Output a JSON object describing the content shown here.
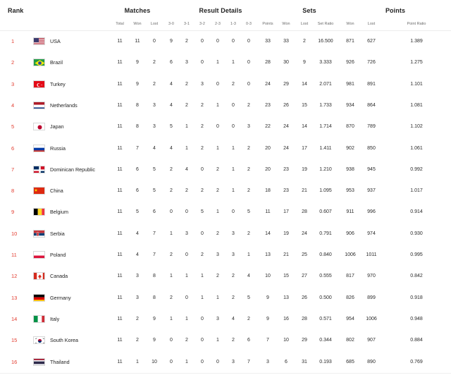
{
  "headers": {
    "rank": "Rank",
    "matches": "Matches",
    "result_details": "Result Details",
    "sets": "Sets",
    "points": "Points"
  },
  "subheaders": {
    "total": "Total",
    "won": "Won",
    "lost": "Lost",
    "r30": "3-0",
    "r31": "3-1",
    "r32": "3-2",
    "r23": "2-3",
    "r13": "1-3",
    "r03": "0-3",
    "points": "Points",
    "sets_won": "Won",
    "sets_lost": "Lost",
    "set_ratio": "Set Ratio",
    "pts_won": "Won",
    "pts_lost": "Lost",
    "point_ratio": "Point Ratio"
  },
  "rows": [
    {
      "rank": "1",
      "team": "USA",
      "flag": "usa-flag",
      "total": "11",
      "won": "11",
      "lost": "0",
      "r30": "9",
      "r31": "2",
      "r32": "0",
      "r23": "0",
      "r13": "0",
      "r03": "0",
      "points": "33",
      "sets_won": "33",
      "sets_lost": "2",
      "set_ratio": "16.500",
      "pts_won": "871",
      "pts_lost": "627",
      "point_ratio": "1.389"
    },
    {
      "rank": "2",
      "team": "Brazil",
      "flag": "brazil-flag",
      "total": "11",
      "won": "9",
      "lost": "2",
      "r30": "6",
      "r31": "3",
      "r32": "0",
      "r23": "1",
      "r13": "1",
      "r03": "0",
      "points": "28",
      "sets_won": "30",
      "sets_lost": "9",
      "set_ratio": "3.333",
      "pts_won": "926",
      "pts_lost": "726",
      "point_ratio": "1.275"
    },
    {
      "rank": "3",
      "team": "Turkey",
      "flag": "turkey-flag",
      "total": "11",
      "won": "9",
      "lost": "2",
      "r30": "4",
      "r31": "2",
      "r32": "3",
      "r23": "0",
      "r13": "2",
      "r03": "0",
      "points": "24",
      "sets_won": "29",
      "sets_lost": "14",
      "set_ratio": "2.071",
      "pts_won": "981",
      "pts_lost": "891",
      "point_ratio": "1.101"
    },
    {
      "rank": "4",
      "team": "Netherlands",
      "flag": "netherlands-flag",
      "total": "11",
      "won": "8",
      "lost": "3",
      "r30": "4",
      "r31": "2",
      "r32": "2",
      "r23": "1",
      "r13": "0",
      "r03": "2",
      "points": "23",
      "sets_won": "26",
      "sets_lost": "15",
      "set_ratio": "1.733",
      "pts_won": "934",
      "pts_lost": "864",
      "point_ratio": "1.081"
    },
    {
      "rank": "5",
      "team": "Japan",
      "flag": "japan-flag",
      "total": "11",
      "won": "8",
      "lost": "3",
      "r30": "5",
      "r31": "1",
      "r32": "2",
      "r23": "0",
      "r13": "0",
      "r03": "3",
      "points": "22",
      "sets_won": "24",
      "sets_lost": "14",
      "set_ratio": "1.714",
      "pts_won": "870",
      "pts_lost": "789",
      "point_ratio": "1.102"
    },
    {
      "rank": "6",
      "team": "Russia",
      "flag": "russia-flag",
      "total": "11",
      "won": "7",
      "lost": "4",
      "r30": "4",
      "r31": "1",
      "r32": "2",
      "r23": "1",
      "r13": "1",
      "r03": "2",
      "points": "20",
      "sets_won": "24",
      "sets_lost": "17",
      "set_ratio": "1.411",
      "pts_won": "902",
      "pts_lost": "850",
      "point_ratio": "1.061"
    },
    {
      "rank": "7",
      "team": "Dominican Republic",
      "flag": "dominican-republic-flag",
      "total": "11",
      "won": "6",
      "lost": "5",
      "r30": "2",
      "r31": "4",
      "r32": "0",
      "r23": "2",
      "r13": "1",
      "r03": "2",
      "points": "20",
      "sets_won": "23",
      "sets_lost": "19",
      "set_ratio": "1.210",
      "pts_won": "938",
      "pts_lost": "945",
      "point_ratio": "0.992"
    },
    {
      "rank": "8",
      "team": "China",
      "flag": "china-flag",
      "total": "11",
      "won": "6",
      "lost": "5",
      "r30": "2",
      "r31": "2",
      "r32": "2",
      "r23": "2",
      "r13": "1",
      "r03": "2",
      "points": "18",
      "sets_won": "23",
      "sets_lost": "21",
      "set_ratio": "1.095",
      "pts_won": "953",
      "pts_lost": "937",
      "point_ratio": "1.017"
    },
    {
      "rank": "9",
      "team": "Belgium",
      "flag": "belgium-flag",
      "total": "11",
      "won": "5",
      "lost": "6",
      "r30": "0",
      "r31": "0",
      "r32": "5",
      "r23": "1",
      "r13": "0",
      "r03": "5",
      "points": "11",
      "sets_won": "17",
      "sets_lost": "28",
      "set_ratio": "0.607",
      "pts_won": "911",
      "pts_lost": "996",
      "point_ratio": "0.914"
    },
    {
      "rank": "10",
      "team": "Serbia",
      "flag": "serbia-flag",
      "total": "11",
      "won": "4",
      "lost": "7",
      "r30": "1",
      "r31": "3",
      "r32": "0",
      "r23": "2",
      "r13": "3",
      "r03": "2",
      "points": "14",
      "sets_won": "19",
      "sets_lost": "24",
      "set_ratio": "0.791",
      "pts_won": "906",
      "pts_lost": "974",
      "point_ratio": "0.930"
    },
    {
      "rank": "11",
      "team": "Poland",
      "flag": "poland-flag",
      "total": "11",
      "won": "4",
      "lost": "7",
      "r30": "2",
      "r31": "0",
      "r32": "2",
      "r23": "3",
      "r13": "3",
      "r03": "1",
      "points": "13",
      "sets_won": "21",
      "sets_lost": "25",
      "set_ratio": "0.840",
      "pts_won": "1006",
      "pts_lost": "1011",
      "point_ratio": "0.995"
    },
    {
      "rank": "12",
      "team": "Canada",
      "flag": "canada-flag",
      "total": "11",
      "won": "3",
      "lost": "8",
      "r30": "1",
      "r31": "1",
      "r32": "1",
      "r23": "2",
      "r13": "2",
      "r03": "4",
      "points": "10",
      "sets_won": "15",
      "sets_lost": "27",
      "set_ratio": "0.555",
      "pts_won": "817",
      "pts_lost": "970",
      "point_ratio": "0.842"
    },
    {
      "rank": "13",
      "team": "Germany",
      "flag": "germany-flag",
      "total": "11",
      "won": "3",
      "lost": "8",
      "r30": "2",
      "r31": "0",
      "r32": "1",
      "r23": "1",
      "r13": "2",
      "r03": "5",
      "points": "9",
      "sets_won": "13",
      "sets_lost": "26",
      "set_ratio": "0.500",
      "pts_won": "826",
      "pts_lost": "899",
      "point_ratio": "0.918"
    },
    {
      "rank": "14",
      "team": "Italy",
      "flag": "italy-flag",
      "total": "11",
      "won": "2",
      "lost": "9",
      "r30": "1",
      "r31": "1",
      "r32": "0",
      "r23": "3",
      "r13": "4",
      "r03": "2",
      "points": "9",
      "sets_won": "16",
      "sets_lost": "28",
      "set_ratio": "0.571",
      "pts_won": "954",
      "pts_lost": "1006",
      "point_ratio": "0.948"
    },
    {
      "rank": "15",
      "team": "South Korea",
      "flag": "south-korea-flag",
      "total": "11",
      "won": "2",
      "lost": "9",
      "r30": "0",
      "r31": "2",
      "r32": "0",
      "r23": "1",
      "r13": "2",
      "r03": "6",
      "points": "7",
      "sets_won": "10",
      "sets_lost": "29",
      "set_ratio": "0.344",
      "pts_won": "802",
      "pts_lost": "907",
      "point_ratio": "0.884"
    },
    {
      "rank": "16",
      "team": "Thailand",
      "flag": "thailand-flag",
      "total": "11",
      "won": "1",
      "lost": "10",
      "r30": "0",
      "r31": "1",
      "r32": "0",
      "r23": "0",
      "r13": "3",
      "r03": "7",
      "points": "3",
      "sets_won": "6",
      "sets_lost": "31",
      "set_ratio": "0.193",
      "pts_won": "685",
      "pts_lost": "890",
      "point_ratio": "0.769"
    }
  ],
  "colors": {
    "rank_accent": "#e23b2e",
    "header_text": "#222222",
    "subheader_text": "#6b6b6b",
    "divider": "#ededed"
  }
}
